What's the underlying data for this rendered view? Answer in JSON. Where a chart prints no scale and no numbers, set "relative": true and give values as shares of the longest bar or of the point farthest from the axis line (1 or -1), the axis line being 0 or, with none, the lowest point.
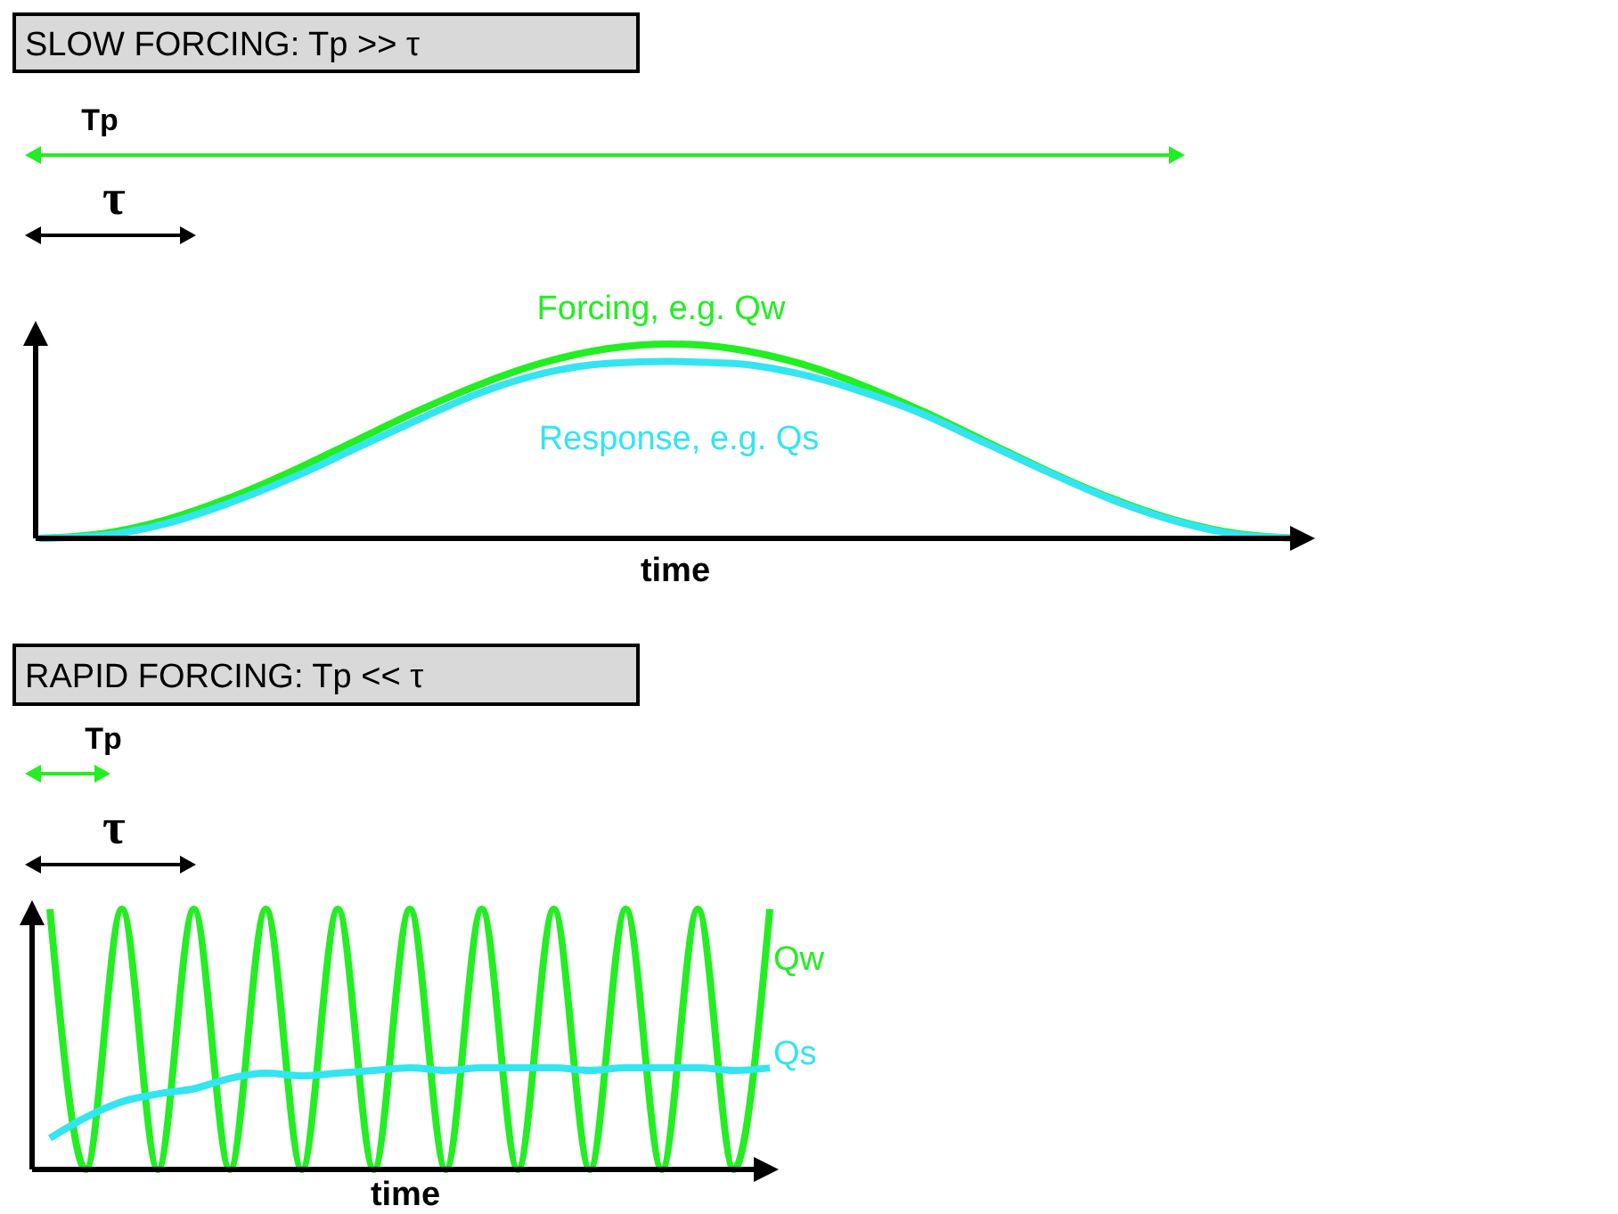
{
  "chart_data": [
    {
      "type": "line",
      "title": "SLOW FORCING:   Tp >> τ",
      "xlabel": "time",
      "relative": true,
      "legend": false,
      "line_style": "solid",
      "annotations": [
        "Tp",
        "τ"
      ],
      "categories": [
        null,
        null,
        null,
        null,
        null,
        null,
        null,
        null,
        null,
        null,
        null,
        null,
        null,
        null,
        null,
        null,
        null,
        null,
        null,
        null,
        null
      ],
      "series": [
        {
          "name": "Forcing, e.g. Qw",
          "color": "#22ee22",
          "values": [
            0,
            0.024,
            0.095,
            0.206,
            0.345,
            0.5,
            0.655,
            0.794,
            0.905,
            0.976,
            1,
            0.976,
            0.905,
            0.794,
            0.655,
            0.5,
            0.345,
            0.206,
            0.095,
            0.024,
            0
          ]
        },
        {
          "name": "Response, e.g. Qs",
          "color": "#33e5f0",
          "values": [
            0,
            0.015,
            0.075,
            0.18,
            0.31,
            0.46,
            0.61,
            0.75,
            0.85,
            0.9,
            0.91,
            0.9,
            0.85,
            0.76,
            0.64,
            0.49,
            0.34,
            0.2,
            0.09,
            0.02,
            0
          ]
        }
      ]
    },
    {
      "type": "line",
      "title": "RAPID FORCING:   Tp << τ",
      "xlabel": "time",
      "relative": true,
      "legend": false,
      "line_style": "solid",
      "annotations": [
        "Tp",
        "τ"
      ],
      "categories": [
        null,
        null,
        null,
        null,
        null,
        null,
        null,
        null,
        null,
        null,
        null,
        null,
        null,
        null,
        null,
        null,
        null,
        null,
        null,
        null,
        null
      ],
      "series": [
        {
          "name": "Qw",
          "color": "#22ee22",
          "values": [
            1,
            0,
            1,
            0,
            1,
            0,
            1,
            0,
            1,
            0,
            1,
            0,
            1,
            0,
            1,
            0,
            1,
            0,
            1,
            0,
            1
          ]
        },
        {
          "name": "Qs",
          "color": "#33e5f0",
          "values": [
            0.12,
            0.2,
            0.26,
            0.29,
            0.31,
            0.35,
            0.37,
            0.36,
            0.37,
            0.38,
            0.39,
            0.38,
            0.39,
            0.39,
            0.39,
            0.38,
            0.39,
            0.39,
            0.39,
            0.38,
            0.39
          ]
        }
      ]
    }
  ]
}
